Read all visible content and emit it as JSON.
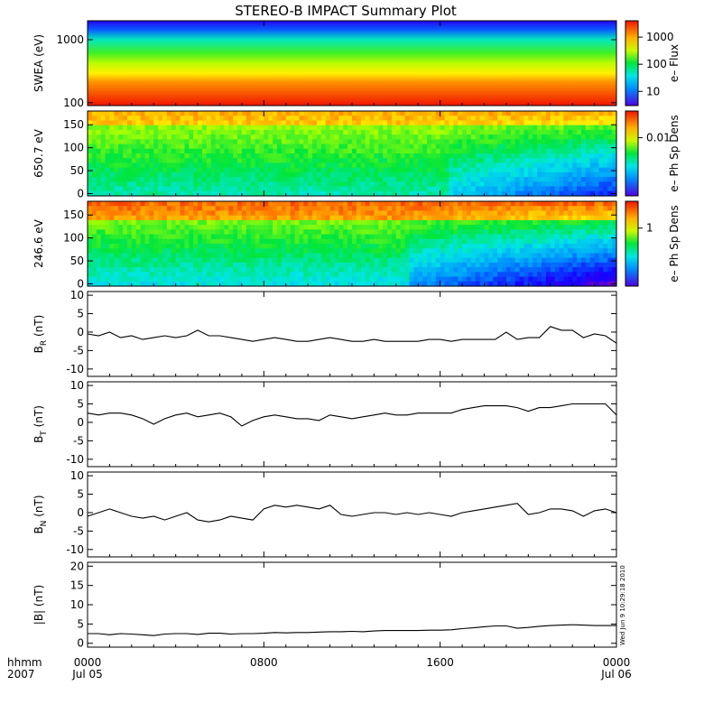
{
  "title": "STEREO-B IMPACT Summary Plot",
  "timestamp_note": "Wed Jun 9 10:29:18 2010",
  "time_axis": {
    "label_line1": "hhmm",
    "label_line2": "2007",
    "ticks": [
      {
        "hour": 0,
        "label": "0000",
        "date": "Jul 05"
      },
      {
        "hour": 8,
        "label": "0800",
        "date": ""
      },
      {
        "hour": 16,
        "label": "1600",
        "date": ""
      },
      {
        "hour": 24,
        "label": "0000",
        "date": "Jul 06"
      }
    ]
  },
  "chart_data": [
    {
      "type": "heatmap",
      "ylabel": "SWEA (eV)",
      "yscale": "log",
      "ylim": [
        90,
        2000
      ],
      "yticks": [
        {
          "v": 100,
          "label": "100"
        },
        {
          "v": 1000,
          "label": "1000"
        }
      ],
      "colorbar": {
        "label": "e– Flux",
        "scale": "log",
        "range": [
          3,
          4000
        ],
        "ticks": [
          {
            "v": 10,
            "label": "10"
          },
          {
            "v": 100,
            "label": "100"
          },
          {
            "v": 1000,
            "label": "1000"
          }
        ]
      }
    },
    {
      "type": "heatmap",
      "ylabel": "650.7 eV",
      "yscale": "linear",
      "ylim": [
        -5,
        180
      ],
      "yticks": [
        {
          "v": 0,
          "label": "0"
        },
        {
          "v": 50,
          "label": "50"
        },
        {
          "v": 100,
          "label": "100"
        },
        {
          "v": 150,
          "label": "150"
        }
      ],
      "colorbar": {
        "label": "e– Ph Sp Dens",
        "scale": "log",
        "range": [
          0.0003,
          0.05
        ],
        "ticks": [
          {
            "v": 0.01,
            "label": "0.01"
          }
        ]
      }
    },
    {
      "type": "heatmap",
      "ylabel": "246.6 eV",
      "yscale": "linear",
      "ylim": [
        -5,
        180
      ],
      "yticks": [
        {
          "v": 0,
          "label": "0"
        },
        {
          "v": 50,
          "label": "50"
        },
        {
          "v": 100,
          "label": "100"
        },
        {
          "v": 150,
          "label": "150"
        }
      ],
      "colorbar": {
        "label": "e– Ph Sp Dens",
        "scale": "log",
        "range": [
          0.05,
          4
        ],
        "ticks": [
          {
            "v": 1,
            "label": "1"
          }
        ]
      }
    },
    {
      "type": "line",
      "ylabel_main": "B",
      "ylabel_sub": "R",
      "ylabel_unit": " (nT)",
      "ylim": [
        -12,
        11
      ],
      "yticks": [
        {
          "v": -10,
          "label": "-10"
        },
        {
          "v": -5,
          "label": "-5"
        },
        {
          "v": 0,
          "label": "0"
        },
        {
          "v": 5,
          "label": "5"
        },
        {
          "v": 10,
          "label": "10"
        }
      ],
      "x": [
        0,
        0.5,
        1,
        1.5,
        2,
        2.5,
        3,
        3.5,
        4,
        4.5,
        5,
        5.5,
        6,
        6.5,
        7,
        7.5,
        8,
        8.5,
        9,
        9.5,
        10,
        10.5,
        11,
        11.5,
        12,
        12.5,
        13,
        13.5,
        14,
        14.5,
        15,
        15.5,
        16,
        16.5,
        17,
        17.5,
        18,
        18.5,
        19,
        19.5,
        20,
        20.5,
        21,
        21.5,
        22,
        22.5,
        23,
        23.5,
        24
      ],
      "y": [
        -0.5,
        -1,
        0,
        -1.5,
        -1,
        -2,
        -1.5,
        -1,
        -1.5,
        -1,
        0.5,
        -1,
        -1,
        -1.5,
        -2,
        -2.5,
        -2,
        -1.5,
        -2,
        -2.5,
        -2.5,
        -2,
        -1.5,
        -2,
        -2.5,
        -2.5,
        -2,
        -2.5,
        -2.5,
        -2.5,
        -2.5,
        -2,
        -2,
        -2.5,
        -2,
        -2,
        -2,
        -2,
        0,
        -2,
        -1.5,
        -1.5,
        1.5,
        0.5,
        0.5,
        -1.5,
        -0.5,
        -1,
        -3
      ]
    },
    {
      "type": "line",
      "ylabel_main": "B",
      "ylabel_sub": "T",
      "ylabel_unit": " (nT)",
      "ylim": [
        -12,
        11
      ],
      "yticks": [
        {
          "v": -10,
          "label": "-10"
        },
        {
          "v": -5,
          "label": "-5"
        },
        {
          "v": 0,
          "label": "0"
        },
        {
          "v": 5,
          "label": "5"
        },
        {
          "v": 10,
          "label": "10"
        }
      ],
      "x": [
        0,
        0.5,
        1,
        1.5,
        2,
        2.5,
        3,
        3.5,
        4,
        4.5,
        5,
        5.5,
        6,
        6.5,
        7,
        7.5,
        8,
        8.5,
        9,
        9.5,
        10,
        10.5,
        11,
        11.5,
        12,
        12.5,
        13,
        13.5,
        14,
        14.5,
        15,
        15.5,
        16,
        16.5,
        17,
        17.5,
        18,
        18.5,
        19,
        19.5,
        20,
        20.5,
        21,
        21.5,
        22,
        22.5,
        23,
        23.5,
        24
      ],
      "y": [
        2.5,
        2,
        2.5,
        2.5,
        2,
        1,
        -0.5,
        1,
        2,
        2.5,
        1.5,
        2,
        2.5,
        1.5,
        -1,
        0.5,
        1.5,
        2,
        1.5,
        1,
        1,
        0.5,
        2,
        1.5,
        1,
        1.5,
        2,
        2.5,
        2,
        2,
        2.5,
        2.5,
        2.5,
        2.5,
        3.5,
        4,
        4.5,
        4.5,
        4.5,
        4,
        3,
        4,
        4,
        4.5,
        5,
        5,
        5,
        5,
        2
      ]
    },
    {
      "type": "line",
      "ylabel_main": "B",
      "ylabel_sub": "N",
      "ylabel_unit": " (nT)",
      "ylim": [
        -12,
        11
      ],
      "yticks": [
        {
          "v": -10,
          "label": "-10"
        },
        {
          "v": -5,
          "label": "-5"
        },
        {
          "v": 0,
          "label": "0"
        },
        {
          "v": 5,
          "label": "5"
        },
        {
          "v": 10,
          "label": "10"
        }
      ],
      "x": [
        0,
        0.5,
        1,
        1.5,
        2,
        2.5,
        3,
        3.5,
        4,
        4.5,
        5,
        5.5,
        6,
        6.5,
        7,
        7.5,
        8,
        8.5,
        9,
        9.5,
        10,
        10.5,
        11,
        11.5,
        12,
        12.5,
        13,
        13.5,
        14,
        14.5,
        15,
        15.5,
        16,
        16.5,
        17,
        17.5,
        18,
        18.5,
        19,
        19.5,
        20,
        20.5,
        21,
        21.5,
        22,
        22.5,
        23,
        23.5,
        24
      ],
      "y": [
        -1,
        0,
        1,
        0,
        -1,
        -1.5,
        -1,
        -2,
        -1,
        0,
        -2,
        -2.5,
        -2,
        -1,
        -1.5,
        -2,
        1,
        2,
        1.5,
        2,
        1.5,
        1,
        2,
        -0.5,
        -1,
        -0.5,
        0,
        0,
        -0.5,
        0,
        -0.5,
        0,
        -0.5,
        -1,
        0,
        0.5,
        1,
        1.5,
        2,
        2.5,
        -0.5,
        0,
        1,
        1,
        0.5,
        -1,
        0.5,
        1,
        0
      ]
    },
    {
      "type": "line",
      "ylabel": "|B| (nT)",
      "ylim": [
        -1,
        21
      ],
      "yticks": [
        {
          "v": 0,
          "label": "0"
        },
        {
          "v": 5,
          "label": "5"
        },
        {
          "v": 10,
          "label": "10"
        },
        {
          "v": 15,
          "label": "15"
        },
        {
          "v": 20,
          "label": "20"
        }
      ],
      "x": [
        0,
        0.5,
        1,
        1.5,
        2,
        2.5,
        3,
        3.5,
        4,
        4.5,
        5,
        5.5,
        6,
        6.5,
        7,
        7.5,
        8,
        8.5,
        9,
        9.5,
        10,
        10.5,
        11,
        11.5,
        12,
        12.5,
        13,
        13.5,
        14,
        14.5,
        15,
        15.5,
        16,
        16.5,
        17,
        17.5,
        18,
        18.5,
        19,
        19.5,
        20,
        20.5,
        21,
        21.5,
        22,
        22.5,
        23,
        23.5,
        24
      ],
      "y": [
        2.5,
        2.5,
        2.2,
        2.5,
        2.4,
        2.2,
        2,
        2.4,
        2.5,
        2.5,
        2.3,
        2.6,
        2.6,
        2.4,
        2.5,
        2.5,
        2.6,
        2.8,
        2.7,
        2.8,
        2.8,
        2.9,
        3,
        3,
        3.1,
        3,
        3.2,
        3.3,
        3.3,
        3.3,
        3.3,
        3.4,
        3.4,
        3.5,
        3.8,
        4,
        4.3,
        4.5,
        4.5,
        3.9,
        4.1,
        4.4,
        4.6,
        4.7,
        4.8,
        4.7,
        4.6,
        4.6,
        4.6
      ]
    }
  ]
}
